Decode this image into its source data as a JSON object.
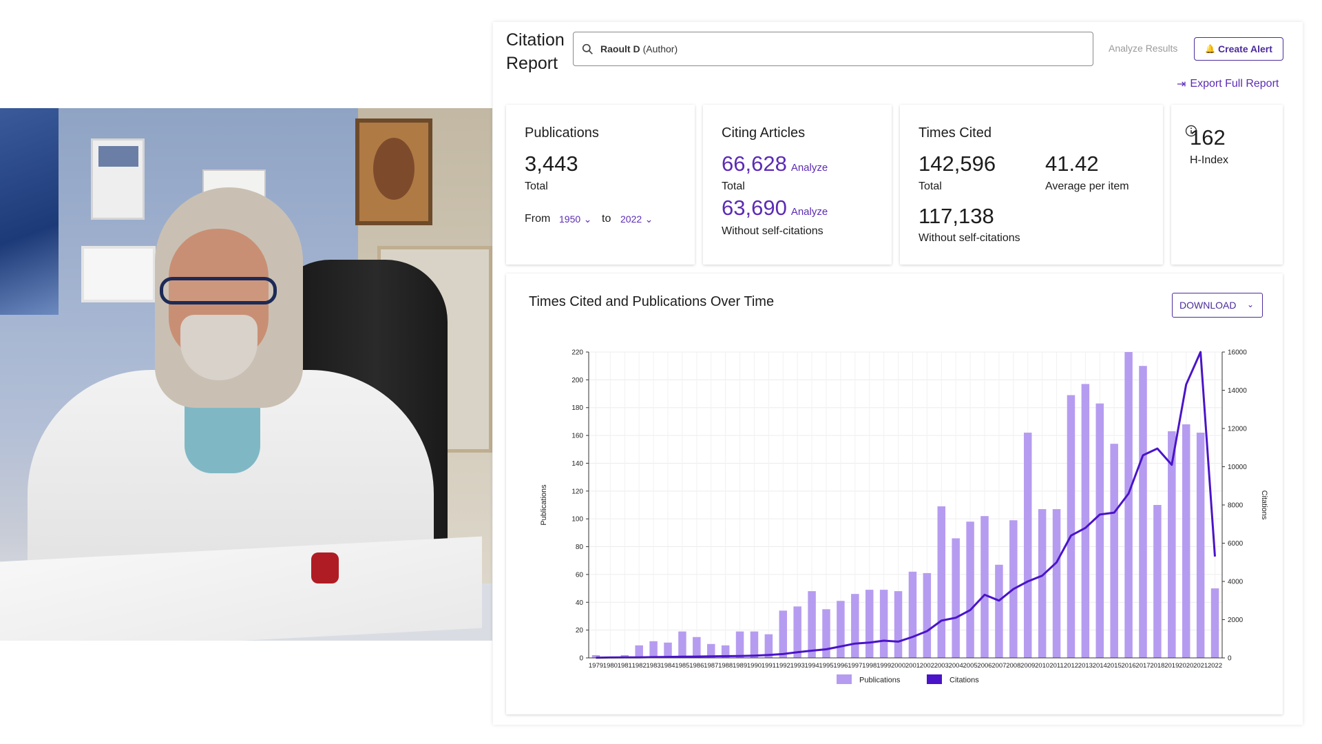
{
  "header": {
    "title": "Citation Report",
    "search_strong": "Raoult D",
    "search_rest": "(Author)",
    "analyze_results": "Analyze Results",
    "create_alert": "Create Alert",
    "export": "Export Full Report"
  },
  "publications": {
    "heading": "Publications",
    "total": "3,443",
    "total_label": "Total",
    "from_label": "From",
    "from_value": "1950",
    "to_label": "to",
    "to_value": "2022"
  },
  "citing": {
    "heading": "Citing Articles",
    "total": "66,628",
    "total_label": "Total",
    "analyze": "Analyze",
    "without": "63,690",
    "without_label": "Without self-citations"
  },
  "times_cited": {
    "heading": "Times Cited",
    "total": "142,596",
    "total_label": "Total",
    "average": "41.42",
    "average_label": "Average per item",
    "without": "117,138",
    "without_label": "Without self-citations"
  },
  "hindex": {
    "value": "162",
    "label": "H-Index"
  },
  "chart_section": {
    "title": "Times Cited and Publications Over Time",
    "download": "DOWNLOAD"
  },
  "colors": {
    "accent": "#5b2bb5",
    "bar": "#b69cf0",
    "line": "#4a14c9"
  },
  "chart_data": {
    "type": "bar",
    "xlabel": "",
    "ylabel": "Publications",
    "y2label": "Citations",
    "ylim": [
      0,
      220
    ],
    "y2lim": [
      0,
      16000
    ],
    "yticks": [
      0,
      20,
      40,
      60,
      80,
      100,
      120,
      140,
      160,
      180,
      200,
      220
    ],
    "y2ticks": [
      0,
      2000,
      4000,
      6000,
      8000,
      10000,
      12000,
      14000,
      16000
    ],
    "grid": true,
    "legend_position": "bottom-center",
    "categories": [
      "1979",
      "1980",
      "1981",
      "1982",
      "1983",
      "1984",
      "1985",
      "1986",
      "1987",
      "1988",
      "1989",
      "1990",
      "1991",
      "1992",
      "1993",
      "1994",
      "1995",
      "1996",
      "1997",
      "1998",
      "1999",
      "2000",
      "2001",
      "2002",
      "2003",
      "2004",
      "2005",
      "2006",
      "2007",
      "2008",
      "2009",
      "2010",
      "2011",
      "2012",
      "2013",
      "2014",
      "2015",
      "2016",
      "2017",
      "2018",
      "2019",
      "2020",
      "2021",
      "2022"
    ],
    "series": [
      {
        "name": "Publications",
        "type": "bar",
        "axis": "left",
        "values": [
          2,
          1,
          2,
          9,
          12,
          11,
          19,
          15,
          10,
          9,
          19,
          19,
          17,
          34,
          37,
          48,
          35,
          41,
          46,
          49,
          49,
          48,
          62,
          61,
          109,
          86,
          98,
          102,
          67,
          99,
          162,
          107,
          107,
          189,
          197,
          183,
          154,
          222,
          210,
          110,
          163,
          168,
          162,
          50
        ]
      },
      {
        "name": "Citations",
        "type": "line",
        "axis": "right",
        "values": [
          10,
          20,
          25,
          30,
          40,
          50,
          60,
          70,
          80,
          90,
          100,
          120,
          150,
          200,
          300,
          380,
          450,
          600,
          750,
          800,
          900,
          850,
          1100,
          1400,
          1950,
          2100,
          2500,
          3300,
          3000,
          3600,
          4000,
          4300,
          5000,
          6400,
          6800,
          7500,
          7600,
          8600,
          10600,
          10950,
          10100,
          14300,
          16000,
          5300
        ]
      }
    ]
  }
}
